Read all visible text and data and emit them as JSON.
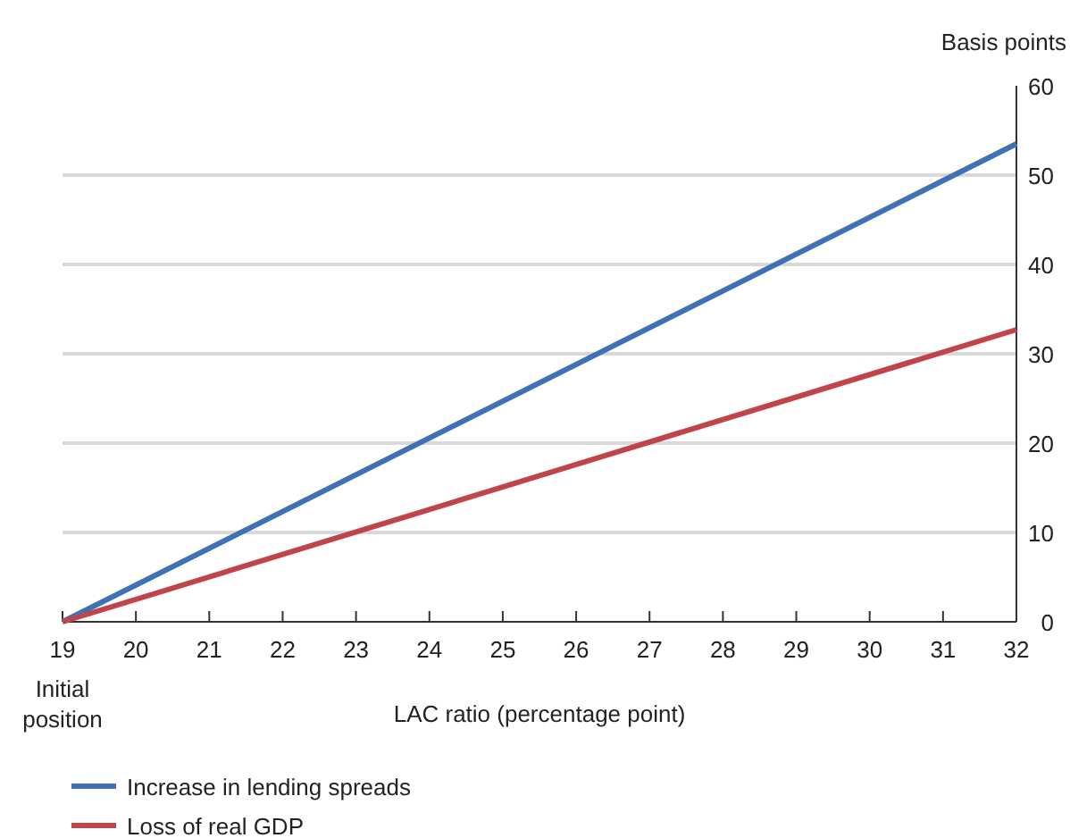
{
  "chart_data": {
    "type": "line",
    "ylabel": "Basis points",
    "xlabel": "LAC ratio (percentage point)",
    "annotations": [
      "Initial position"
    ],
    "x": [
      19,
      32
    ],
    "xlim": [
      19,
      32
    ],
    "xticks": [
      19,
      20,
      21,
      22,
      23,
      24,
      25,
      26,
      27,
      28,
      29,
      30,
      31,
      32
    ],
    "ylim": [
      0,
      60
    ],
    "yticks": [
      0,
      10,
      20,
      30,
      40,
      50,
      60
    ],
    "grid": "y",
    "legend": "bottom",
    "marker": "none",
    "line_style": "solid",
    "series": [
      {
        "name": "Increase in lending spreads",
        "color": "#3f72b5",
        "values": [
          0,
          53.5
        ]
      },
      {
        "name": "Loss of real GDP",
        "color": "#c0444a",
        "values": [
          0,
          32.7
        ]
      }
    ]
  }
}
